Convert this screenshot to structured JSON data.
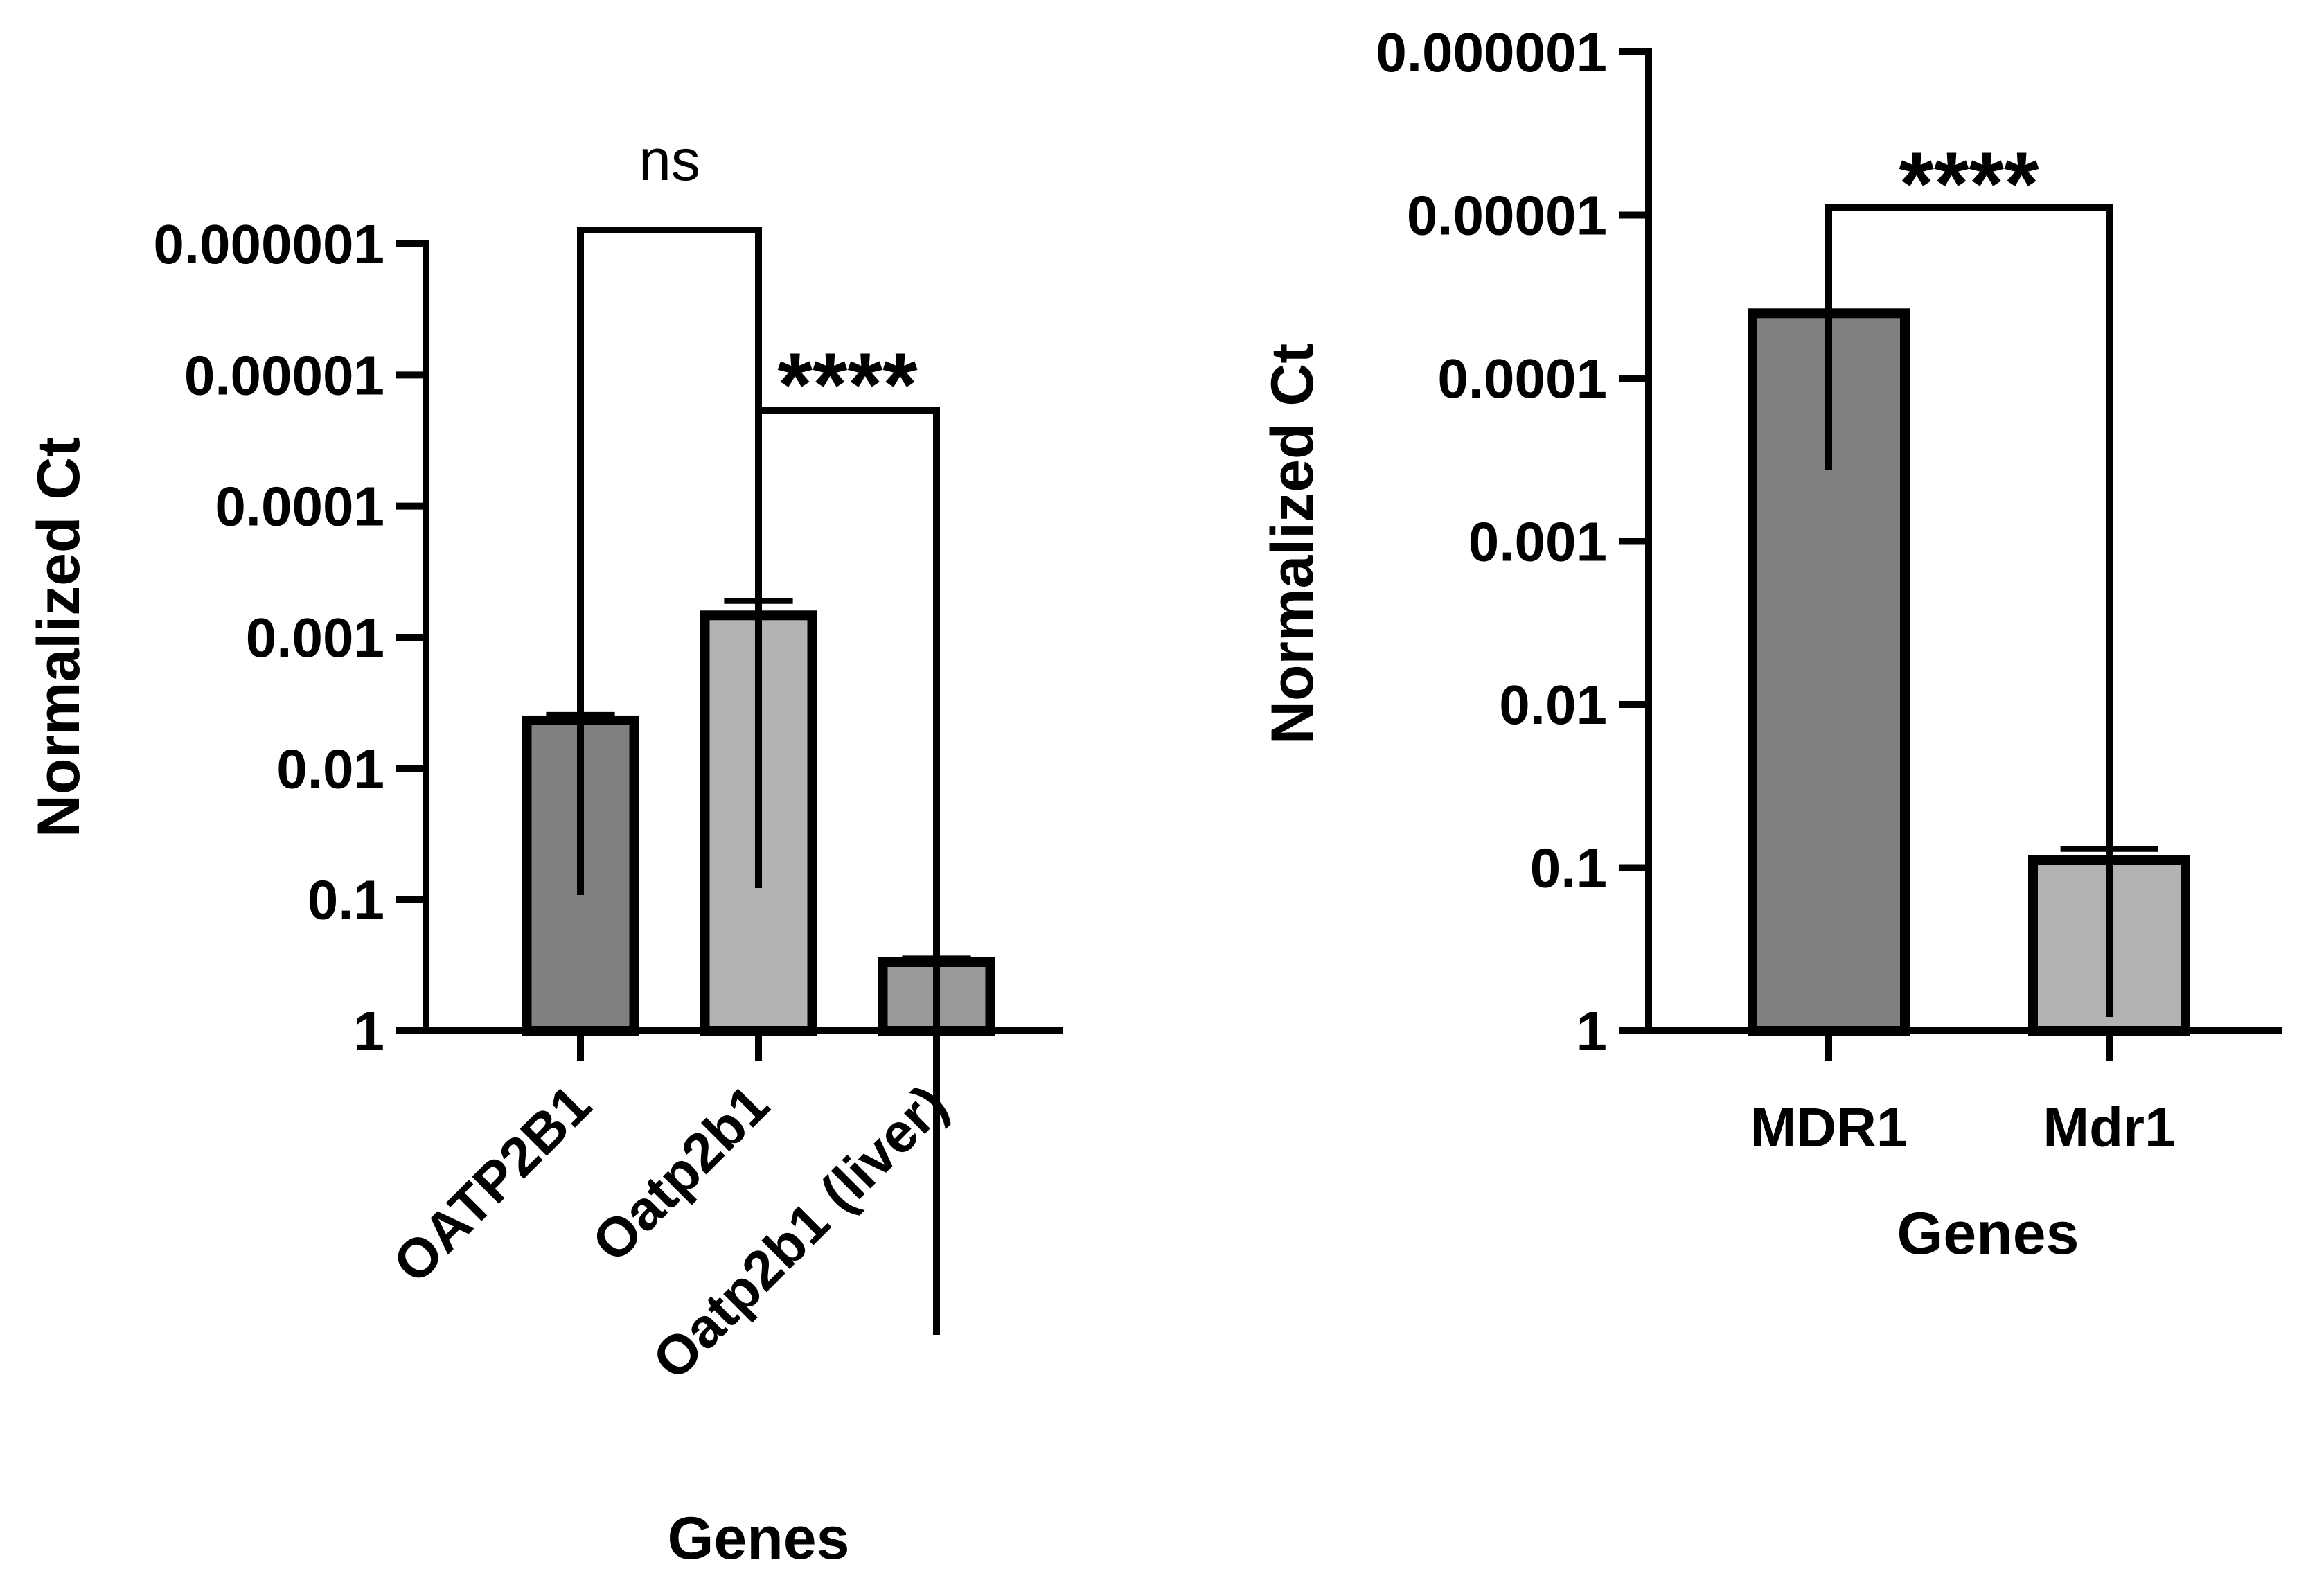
{
  "chart_data": [
    {
      "type": "bar",
      "xlabel": "Genes",
      "ylabel": "Normalized Ct",
      "yscale": "log",
      "y_reversed": true,
      "ylim": [
        1,
        1e-06
      ],
      "yticks": [
        1,
        0.1,
        0.01,
        0.001,
        0.0001,
        1e-05,
        1e-06
      ],
      "ytick_labels": [
        "1",
        "0.1",
        "0.01",
        "0.001",
        "0.0001",
        "0.00001",
        "0.000001"
      ],
      "categories": [
        "OATP2B1",
        "Oatp2b1",
        "Oatp2b1 (liver)"
      ],
      "values": [
        0.0043,
        0.00068,
        0.3
      ],
      "error_upper": [
        0.0039,
        0.00053,
        0.28
      ],
      "bar_colors": [
        "#808080",
        "#b3b3b3",
        "#999999"
      ],
      "comparisons": [
        {
          "from": 0,
          "to": 1,
          "label": "ns"
        },
        {
          "from": 1,
          "to": 2,
          "label": "****"
        }
      ]
    },
    {
      "type": "bar",
      "xlabel": "Genes",
      "ylabel": "Normalized Ct",
      "yscale": "log",
      "y_reversed": true,
      "ylim": [
        1,
        1e-06
      ],
      "yticks": [
        1,
        0.1,
        0.01,
        0.001,
        0.0001,
        1e-05,
        1e-06
      ],
      "ytick_labels": [
        "1",
        "0.1",
        "0.01",
        "0.001",
        "0.0001",
        "0.00001",
        "0.000001"
      ],
      "categories": [
        "MDR1",
        "Mdr1"
      ],
      "values": [
        4e-05,
        0.09
      ],
      "error_upper": [
        3.9e-05,
        0.077
      ],
      "bar_colors": [
        "#808080",
        "#b3b3b3"
      ],
      "comparisons": [
        {
          "from": 0,
          "to": 1,
          "label": "****"
        }
      ]
    }
  ]
}
